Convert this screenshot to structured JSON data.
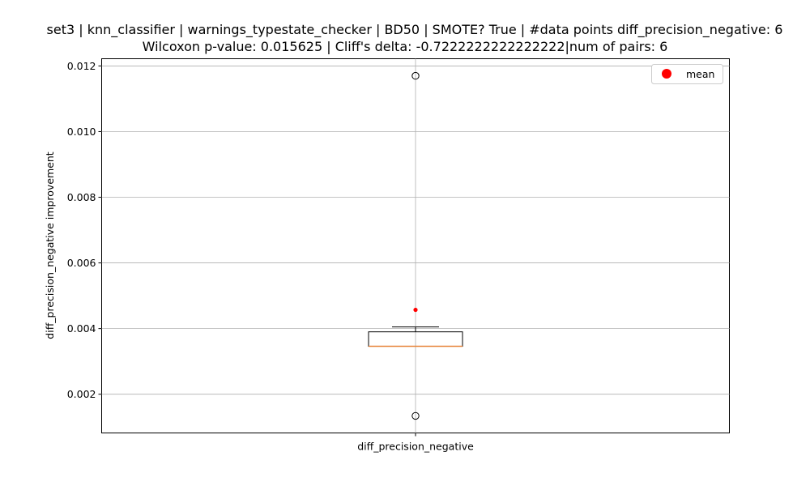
{
  "chart_data": {
    "type": "box",
    "title_lines": [
      "set3 | knn_classifier | warnings_typestate_checker | BD50 | SMOTE? True | #data points diff_precision_negative: 6",
      "Wilcoxon p-value: 0.015625 | Cliff's delta: -0.7222222222222222|num of pairs: 6"
    ],
    "xlabel": "",
    "ylabel": "diff_precision_negative improvement",
    "categories": [
      "diff_precision_negative"
    ],
    "box": {
      "whisker_low": 0.00346,
      "q1": 0.00346,
      "median": 0.00346,
      "q3": 0.0039,
      "whisker_high": 0.00405,
      "mean": 0.00457,
      "outliers": [
        0.0117,
        0.00134
      ]
    },
    "ylim": [
      0.00082,
      0.01222
    ],
    "yticks": [
      0.002,
      0.004,
      0.006,
      0.008,
      0.01,
      0.012
    ],
    "ytick_labels": [
      "0.002",
      "0.004",
      "0.006",
      "0.008",
      "0.010",
      "0.012"
    ],
    "grid": true,
    "legend": {
      "placement": "top-right",
      "entries": [
        {
          "label": "mean",
          "color": "#ff0000"
        }
      ]
    },
    "colors": {
      "median": "#e8853a",
      "mean": "#ff0000",
      "grid": "#b0b0b0",
      "box": "#000000"
    }
  }
}
